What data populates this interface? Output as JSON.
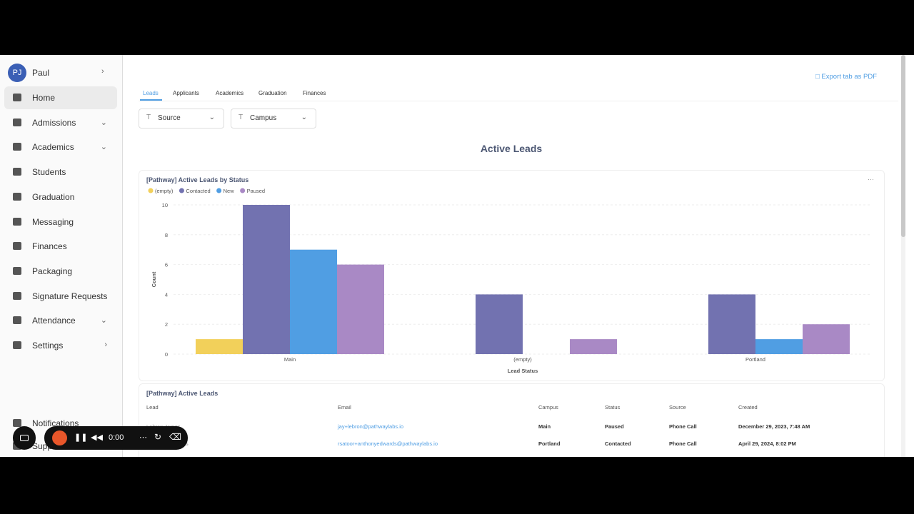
{
  "sidebar": {
    "user": {
      "initials": "PJ",
      "name": "Paul"
    },
    "nav": [
      "Home",
      "Admissions",
      "Academics",
      "Students",
      "Graduation",
      "Messaging",
      "Finances",
      "Packaging",
      "Signature Requests",
      "Attendance",
      "Settings"
    ],
    "footer": [
      "Notifications",
      "Support"
    ]
  },
  "recorder": {
    "time": "0:00"
  },
  "header": {
    "export": "Export tab as PDF",
    "tabs": [
      "Leads",
      "Applicants",
      "Academics",
      "Graduation",
      "Finances"
    ],
    "filters": [
      "Source",
      "Campus"
    ],
    "title": "Active Leads"
  },
  "chart_data": {
    "type": "bar",
    "title": "[Pathway] Active Leads by Status",
    "x_label": "Lead Status",
    "y_label": "Count",
    "categories": [
      "Main",
      "(empty)",
      "Portland"
    ],
    "series": [
      {
        "name": "(empty)",
        "color": "#f2d05a",
        "values": [
          1,
          null,
          null
        ]
      },
      {
        "name": "Contacted",
        "color": "#7272b0",
        "values": [
          10,
          4,
          4
        ]
      },
      {
        "name": "New",
        "color": "#509ee3",
        "values": [
          7,
          null,
          1
        ]
      },
      {
        "name": "Paused",
        "color": "#a989c5",
        "values": [
          6,
          1,
          2
        ]
      }
    ],
    "ylim": [
      0,
      10
    ],
    "yticks": [
      0,
      2,
      4,
      6,
      8,
      10
    ],
    "grid": true
  },
  "table": {
    "title": "[Pathway] Active Leads",
    "columns": [
      "Lead",
      "Email",
      "Campus",
      "Status",
      "Source",
      "Created"
    ],
    "rows": [
      [
        "Lebron James",
        "jay+lebron@pathwaylabs.io",
        "Main",
        "Paused",
        "Phone Call",
        "December 29, 2023, 7:48 AM"
      ],
      [
        "Anthony Edwards",
        "rsatoor+anthonyedwards@pathwaylabs.io",
        "Portland",
        "Contacted",
        "Phone Call",
        "April 29, 2024, 8:02 PM"
      ]
    ]
  }
}
